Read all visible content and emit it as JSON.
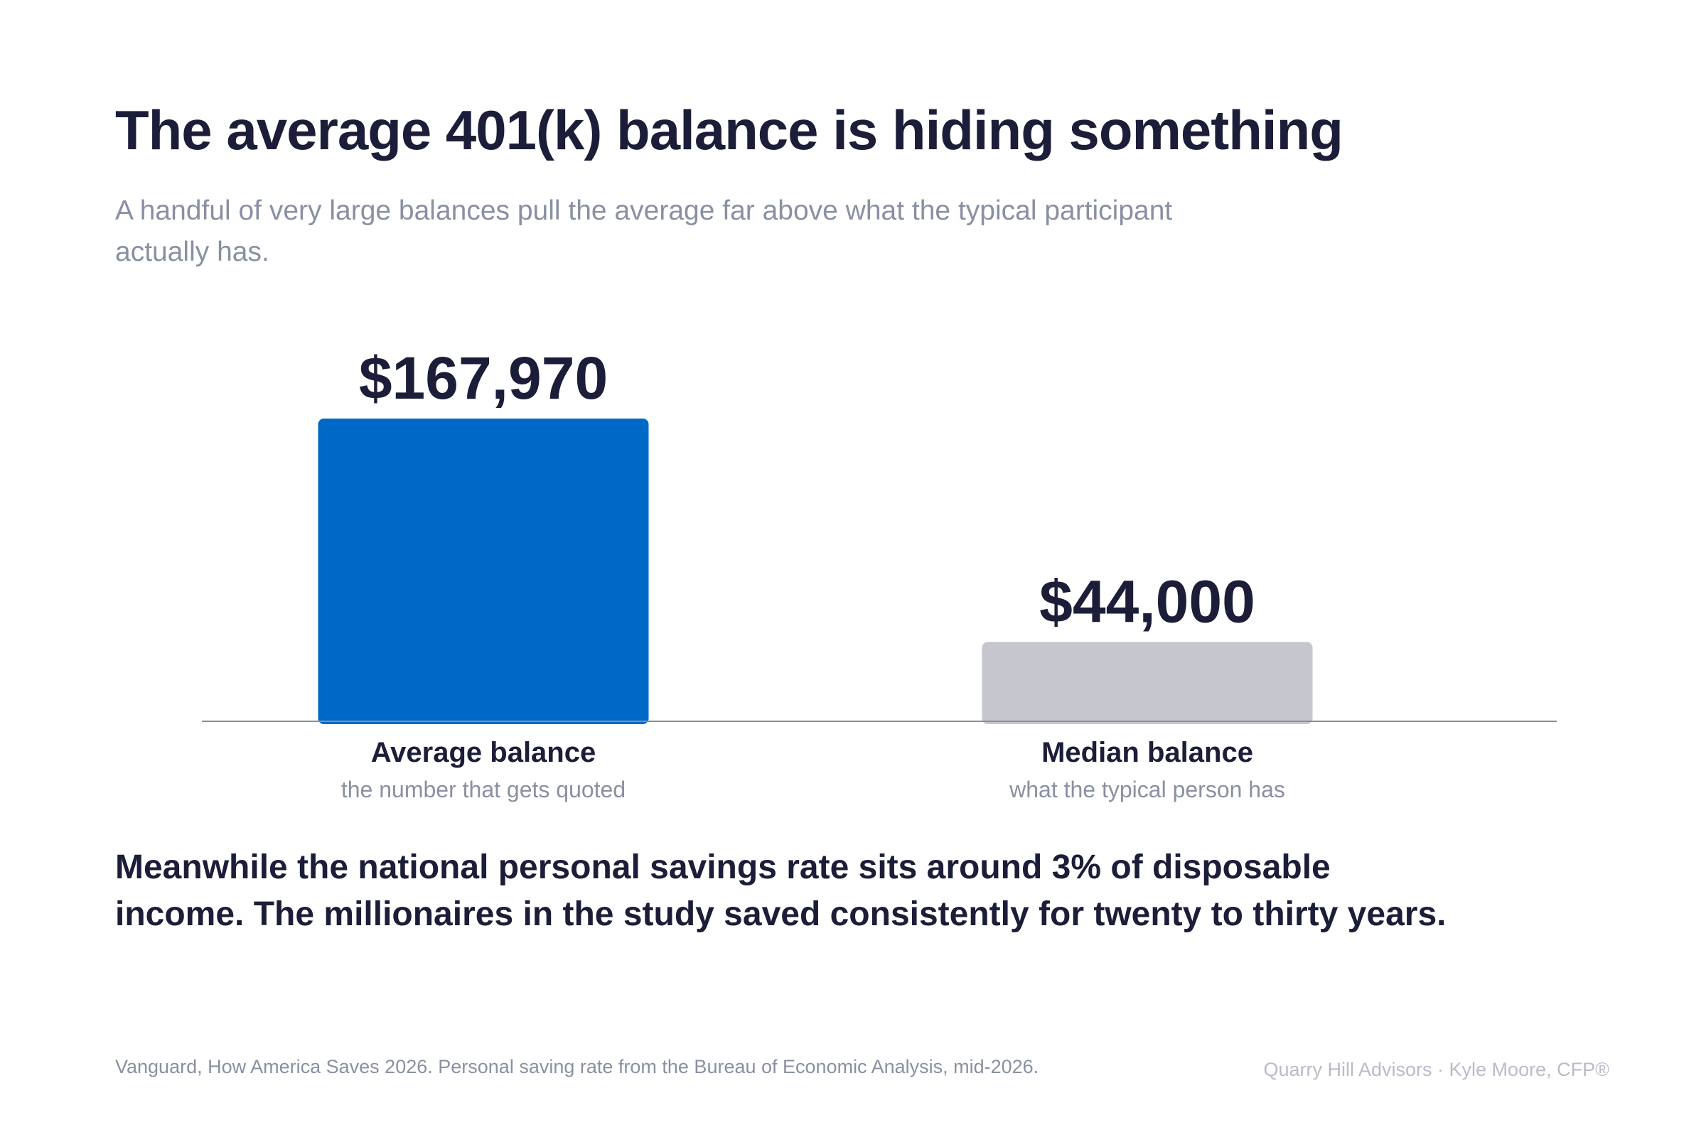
{
  "header": {
    "title": "The average 401(k) balance is hiding something",
    "subtitle": "A handful of very large balances pull the average far above what the typical participant actually has."
  },
  "chart_data": {
    "type": "bar",
    "categories": [
      "Average balance",
      "Median balance"
    ],
    "category_sublabels": [
      "the number that gets quoted",
      "what the typical person has"
    ],
    "values": [
      167970,
      44000
    ],
    "value_labels": [
      "$167,970",
      "$44,000"
    ],
    "bar_colors": [
      "#0069c7",
      "#c5c6ce"
    ],
    "ylim": [
      0,
      167970
    ],
    "grid": false,
    "legend": "none"
  },
  "note": "Meanwhile the national personal savings rate sits around 3% of disposable income. The millionaires in the study saved consistently for twenty to thirty years.",
  "footer": {
    "source": "Vanguard, How America Saves 2026. Personal saving rate from the Bureau of Economic Analysis, mid-2026.",
    "credit": "Quarry Hill Advisors · Kyle Moore, CFP®"
  },
  "colors": {
    "text_primary": "#1c1d38",
    "text_muted": "#8a90a3",
    "baseline": "#8a8e99"
  }
}
